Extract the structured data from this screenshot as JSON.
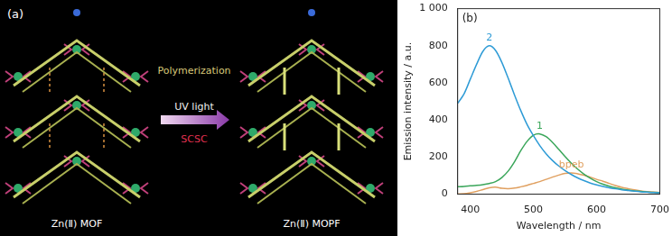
{
  "diagram": {
    "panel_label": "(a)",
    "arrow_top": "Polymerization",
    "arrow_middle": "UV light",
    "arrow_bottom": "SCSC",
    "left_caption": "Zn(Ⅱ) MOF",
    "right_caption": "Zn(Ⅱ) MOPF"
  },
  "chart_data": {
    "type": "line",
    "title": "(b)",
    "x_label": "Wavelength / nm",
    "y_label": "Emission intensity / a.u.",
    "x": [
      380,
      390,
      400,
      410,
      420,
      430,
      440,
      450,
      460,
      470,
      480,
      490,
      500,
      510,
      520,
      530,
      540,
      550,
      560,
      570,
      580,
      590,
      600,
      610,
      620,
      630,
      640,
      650,
      660,
      670,
      680,
      690,
      700
    ],
    "series": [
      {
        "name": "2",
        "color": "#2e9bd6",
        "values": [
          490,
          540,
          620,
          700,
          770,
          800,
          775,
          710,
          625,
          535,
          450,
          375,
          315,
          262,
          218,
          182,
          152,
          127,
          106,
          88,
          73,
          60,
          50,
          42,
          35,
          29,
          24,
          20,
          16,
          13,
          11,
          9,
          8
        ]
      },
      {
        "name": "1",
        "color": "#3aa65a",
        "values": [
          40,
          42,
          45,
          48,
          52,
          58,
          68,
          90,
          125,
          175,
          235,
          285,
          318,
          325,
          310,
          280,
          242,
          203,
          167,
          135,
          108,
          86,
          68,
          54,
          43,
          34,
          27,
          22,
          18,
          15,
          12,
          10,
          9
        ]
      },
      {
        "name": "bpeb",
        "color": "#e0a060",
        "values": [
          2,
          3,
          8,
          15,
          25,
          35,
          38,
          32,
          30,
          33,
          40,
          48,
          58,
          68,
          80,
          92,
          103,
          112,
          115,
          110,
          102,
          92,
          80,
          70,
          58,
          47,
          37,
          30,
          23,
          18,
          14,
          11,
          9
        ]
      }
    ],
    "xlim": [
      380,
      700
    ],
    "xticks": [
      400,
      500,
      600,
      700
    ],
    "ylim": [
      0,
      1000
    ],
    "yticks": [
      0,
      200,
      400,
      600,
      800,
      {
        "value": 1000,
        "label": "1 000"
      }
    ],
    "grid": false
  }
}
